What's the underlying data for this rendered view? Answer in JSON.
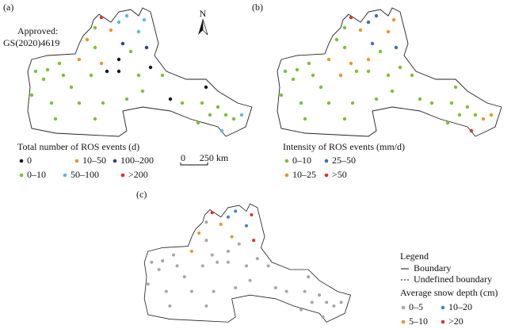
{
  "north": "N",
  "approval": [
    "Approved:",
    "GS(2020)4619"
  ],
  "scale_bar": {
    "zero": "0",
    "label": "250 km"
  },
  "panels": [
    {
      "label": "(a)",
      "legend": {
        "title": "Total number of ROS events (d)",
        "items": [
          {
            "label": "0",
            "color": "#15152b"
          },
          {
            "label": "10–50",
            "color": "#f0922e"
          },
          {
            "label": "100–200",
            "color": "#2c3f8f"
          },
          {
            "label": "0–10",
            "color": "#7cbf3c"
          },
          {
            "label": "50–100",
            "color": "#5fb8e0"
          },
          {
            "label": ">200",
            "color": "#e0302a"
          }
        ]
      }
    },
    {
      "label": "(b)",
      "legend": {
        "title": "Intensity of ROS events (mm/d)",
        "items": [
          {
            "label": "0–10",
            "color": "#7cbf3c"
          },
          {
            "label": "25–50",
            "color": "#3d6fb8"
          },
          {
            "label": "10–25",
            "color": "#f0922e"
          },
          {
            "label": ">50",
            "color": "#e0302a"
          }
        ]
      }
    },
    {
      "label": "(c)",
      "legend": {
        "title": "Average snow depth (cm)",
        "items": [
          {
            "label": "0–5",
            "color": "#a8a8a8"
          },
          {
            "label": "10–20",
            "color": "#3d86c8"
          },
          {
            "label": "5–10",
            "color": "#f0922e"
          },
          {
            "label": ">20",
            "color": "#e0302a"
          }
        ]
      }
    }
  ],
  "legend_c": {
    "heading": "Legend",
    "boundary": "Boundary",
    "undefined_boundary": "Undefined boundary"
  }
}
